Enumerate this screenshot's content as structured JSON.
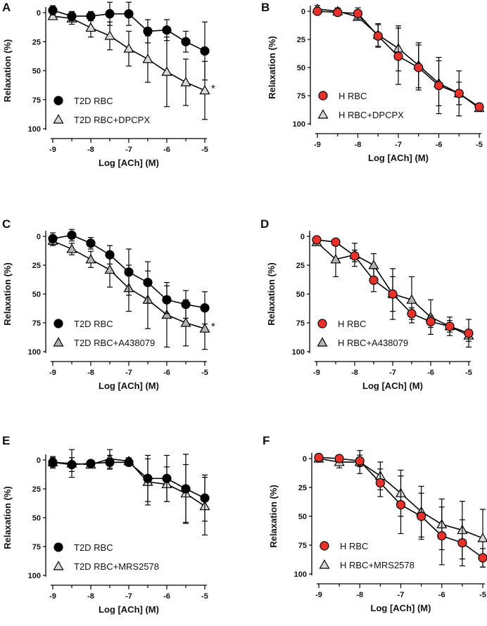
{
  "chart_data": [
    {
      "type": "line",
      "panel": "A",
      "xlabel": "Log [ACh] (M)",
      "ylabel": "Relaxation (%)",
      "xlim": [
        -9,
        -5
      ],
      "ylim": [
        0,
        100
      ],
      "y_inverted": true,
      "x_ticks": [
        "-9",
        "-8",
        "-7",
        "-6",
        "-5"
      ],
      "y_ticks": [
        "0",
        "25",
        "50",
        "75",
        "100"
      ],
      "x": [
        -9,
        -8.5,
        -8,
        -7.5,
        -7,
        -6.5,
        -6,
        -5.5,
        -5
      ],
      "legend_position": "bottom-left",
      "significance": "*",
      "series": [
        {
          "name": "T2D RBC",
          "marker": "circle",
          "color": "#000000",
          "values": [
            -2,
            3,
            3,
            1,
            1,
            16,
            15,
            25,
            33
          ],
          "errors": [
            4,
            4,
            4,
            10,
            10,
            10,
            9,
            9,
            25
          ]
        },
        {
          "name": "T2D RBC+DPCPX",
          "marker": "triangle",
          "color": "#d9d9d9",
          "values": [
            3,
            5,
            13,
            20,
            31,
            40,
            51,
            60,
            67
          ],
          "errors": [
            3,
            5,
            8,
            12,
            15,
            20,
            30,
            20,
            25
          ]
        }
      ]
    },
    {
      "type": "line",
      "panel": "B",
      "xlabel": "Log [ACh] (M)",
      "ylabel": "Relaxation (%)",
      "xlim": [
        -9,
        -5
      ],
      "ylim": [
        0,
        100
      ],
      "y_inverted": true,
      "x_ticks": [
        "-9",
        "-8",
        "-7",
        "-6",
        "-5"
      ],
      "y_ticks": [
        "0",
        "25",
        "50",
        "75",
        "100"
      ],
      "x": [
        -9,
        -8.5,
        -8,
        -7.5,
        -7,
        -6.5,
        -6,
        -5.5,
        -5
      ],
      "legend_position": "bottom-left",
      "significance": "",
      "series": [
        {
          "name": "H RBC",
          "marker": "circle",
          "color": "#e8312a",
          "values": [
            0,
            1,
            2,
            22,
            40,
            50,
            66,
            73,
            85
          ],
          "errors": [
            3,
            3,
            5,
            10,
            25,
            20,
            25,
            20,
            3
          ]
        },
        {
          "name": "H RBC+DPCPX",
          "marker": "triangle",
          "color": "#d9d9d9",
          "values": [
            -2,
            0,
            5,
            21,
            33,
            48,
            64,
            73,
            86
          ],
          "errors": [
            3,
            3,
            3,
            10,
            20,
            20,
            20,
            10,
            3
          ]
        }
      ]
    },
    {
      "type": "line",
      "panel": "C",
      "xlabel": "Log [ACh] (M)",
      "ylabel": "Relaxation (%)",
      "xlim": [
        -9,
        -5
      ],
      "ylim": [
        0,
        100
      ],
      "y_inverted": true,
      "x_ticks": [
        "-9",
        "-8",
        "-7",
        "-6",
        "-5"
      ],
      "y_ticks": [
        "0",
        "25",
        "50",
        "75",
        "100"
      ],
      "x": [
        -9,
        -8.5,
        -8,
        -7.5,
        -7,
        -6.5,
        -6,
        -5.5,
        -5
      ],
      "legend_position": "bottom-left",
      "significance": "*",
      "series": [
        {
          "name": "T2D RBC",
          "marker": "circle",
          "color": "#000000",
          "values": [
            2,
            -1,
            6,
            16,
            31,
            40,
            55,
            59,
            62
          ],
          "errors": [
            5,
            5,
            5,
            8,
            20,
            18,
            12,
            12,
            14
          ]
        },
        {
          "name": "T2D RBC+A438079",
          "marker": "triangle",
          "color": "#b3b3b3",
          "values": [
            4,
            11,
            20,
            29,
            45,
            55,
            68,
            75,
            80
          ],
          "errors": [
            4,
            5,
            7,
            15,
            20,
            25,
            28,
            20,
            18
          ]
        }
      ]
    },
    {
      "type": "line",
      "panel": "D",
      "xlabel": "Log [ACh] (M)",
      "ylabel": "Relaxation (%)",
      "xlim": [
        -9,
        -5
      ],
      "ylim": [
        0,
        100
      ],
      "y_inverted": true,
      "x_ticks": [
        "-9",
        "-8",
        "-7",
        "-6",
        "-5"
      ],
      "y_ticks": [
        "0",
        "25",
        "50",
        "75",
        "100"
      ],
      "x": [
        -9,
        -8.5,
        -8,
        -7.5,
        -7,
        -6.5,
        -6,
        -5.5,
        -5
      ],
      "legend_position": "bottom-left",
      "significance": "",
      "series": [
        {
          "name": "H RBC",
          "marker": "circle",
          "color": "#e8312a",
          "values": [
            3,
            5,
            17,
            38,
            50,
            67,
            74,
            78,
            84
          ],
          "errors": [
            2,
            2,
            5,
            10,
            15,
            5,
            5,
            5,
            12
          ]
        },
        {
          "name": "H RBC+A438079",
          "marker": "triangle",
          "color": "#b3b3b3",
          "values": [
            5,
            20,
            16,
            25,
            50,
            55,
            70,
            78,
            86
          ],
          "errors": [
            3,
            15,
            10,
            10,
            22,
            20,
            15,
            8,
            5
          ]
        }
      ]
    },
    {
      "type": "line",
      "panel": "E",
      "xlabel": "Log [ACh] (M)",
      "ylabel": "Relaxation (%)",
      "xlim": [
        -9,
        -5
      ],
      "ylim": [
        0,
        100
      ],
      "y_inverted": true,
      "x_ticks": [
        "-9",
        "-8",
        "-7",
        "-6",
        "-5"
      ],
      "y_ticks": [
        "0",
        "25",
        "50",
        "75",
        "100"
      ],
      "x": [
        -9,
        -8.5,
        -8,
        -7.5,
        -7,
        -6.5,
        -6,
        -5.5,
        -5
      ],
      "legend_position": "bottom-left",
      "significance": "",
      "series": [
        {
          "name": "T2D RBC",
          "marker": "circle",
          "color": "#000000",
          "values": [
            2,
            4,
            3,
            2,
            2,
            16,
            16,
            25,
            33
          ],
          "errors": [
            4,
            6,
            2,
            6,
            3,
            20,
            20,
            30,
            20
          ]
        },
        {
          "name": "T2D RBC+MRS2578",
          "marker": "triangle",
          "color": "#d9d9d9",
          "values": [
            2,
            3,
            4,
            -1,
            1,
            19,
            21,
            29,
            40
          ],
          "errors": [
            5,
            12,
            3,
            8,
            3,
            20,
            15,
            25,
            25
          ]
        }
      ]
    },
    {
      "type": "line",
      "panel": "F",
      "xlabel": "Log [ACh] (M)",
      "ylabel": "Relaxation (%)",
      "xlim": [
        -9,
        -5
      ],
      "ylim": [
        0,
        100
      ],
      "y_inverted": true,
      "x_ticks": [
        "-9",
        "-8",
        "-7",
        "-6",
        "-5"
      ],
      "y_ticks": [
        "0",
        "25",
        "50",
        "75",
        "100"
      ],
      "x": [
        -9,
        -8.5,
        -8,
        -7.5,
        -7,
        -6.5,
        -6,
        -5.5,
        -5
      ],
      "legend_position": "bottom-left",
      "significance": "",
      "series": [
        {
          "name": "H RBC",
          "marker": "circle",
          "color": "#e8312a",
          "values": [
            -1,
            0,
            2,
            21,
            40,
            50,
            67,
            73,
            86
          ],
          "errors": [
            3,
            3,
            5,
            12,
            25,
            20,
            25,
            20,
            8
          ]
        },
        {
          "name": "H RBC+MRS2578",
          "marker": "triangle",
          "color": "#d9d9d9",
          "values": [
            0,
            3,
            3,
            15,
            30,
            46,
            57,
            62,
            69
          ],
          "errors": [
            3,
            5,
            10,
            12,
            20,
            22,
            22,
            25,
            25
          ]
        }
      ]
    }
  ]
}
